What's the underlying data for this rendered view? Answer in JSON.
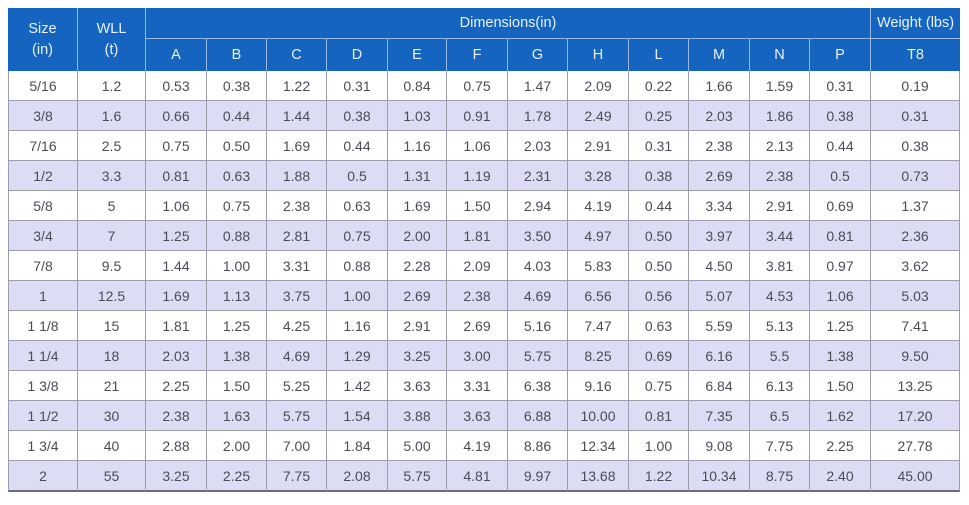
{
  "header": {
    "size": {
      "line1": "Size",
      "line2": "(in)"
    },
    "wll": {
      "line1": "WLL",
      "line2": "(t)"
    },
    "dimensions_label": "Dimensions(in)",
    "weight_label": "Weight (lbs)",
    "dim_subcolumns": [
      "A",
      "B",
      "C",
      "D",
      "E",
      "F",
      "G",
      "H",
      "L",
      "M",
      "N",
      "P"
    ],
    "weight_subcolumn": "T8"
  },
  "colors": {
    "header_bg": "#1565c0",
    "header_text": "#e9f1fd",
    "row_alt_bg": "#dcdcf4",
    "row_bg": "#ffffff",
    "body_text": "#4c4c55",
    "grid_line": "#9d9dae"
  },
  "chart_data": {
    "type": "table",
    "title": "",
    "column_groups": [
      {
        "label": "Size (in)",
        "span": 1
      },
      {
        "label": "WLL (t)",
        "span": 1
      },
      {
        "label": "Dimensions(in)",
        "span": 12
      },
      {
        "label": "Weight (lbs)",
        "span": 1
      }
    ],
    "columns": [
      "Size (in)",
      "WLL (t)",
      "A",
      "B",
      "C",
      "D",
      "E",
      "F",
      "G",
      "H",
      "L",
      "M",
      "N",
      "P",
      "T8"
    ],
    "rows": [
      [
        "5/16",
        "1.2",
        "0.53",
        "0.38",
        "1.22",
        "0.31",
        "0.84",
        "0.75",
        "1.47",
        "2.09",
        "0.22",
        "1.66",
        "1.59",
        "0.31",
        "0.19"
      ],
      [
        "3/8",
        "1.6",
        "0.66",
        "0.44",
        "1.44",
        "0.38",
        "1.03",
        "0.91",
        "1.78",
        "2.49",
        "0.25",
        "2.03",
        "1.86",
        "0.38",
        "0.31"
      ],
      [
        "7/16",
        "2.5",
        "0.75",
        "0.50",
        "1.69",
        "0.44",
        "1.16",
        "1.06",
        "2.03",
        "2.91",
        "0.31",
        "2.38",
        "2.13",
        "0.44",
        "0.38"
      ],
      [
        "1/2",
        "3.3",
        "0.81",
        "0.63",
        "1.88",
        "0.5",
        "1.31",
        "1.19",
        "2.31",
        "3.28",
        "0.38",
        "2.69",
        "2.38",
        "0.5",
        "0.73"
      ],
      [
        "5/8",
        "5",
        "1.06",
        "0.75",
        "2.38",
        "0.63",
        "1.69",
        "1.50",
        "2.94",
        "4.19",
        "0.44",
        "3.34",
        "2.91",
        "0.69",
        "1.37"
      ],
      [
        "3/4",
        "7",
        "1.25",
        "0.88",
        "2.81",
        "0.75",
        "2.00",
        "1.81",
        "3.50",
        "4.97",
        "0.50",
        "3.97",
        "3.44",
        "0.81",
        "2.36"
      ],
      [
        "7/8",
        "9.5",
        "1.44",
        "1.00",
        "3.31",
        "0.88",
        "2.28",
        "2.09",
        "4.03",
        "5.83",
        "0.50",
        "4.50",
        "3.81",
        "0.97",
        "3.62"
      ],
      [
        "1",
        "12.5",
        "1.69",
        "1.13",
        "3.75",
        "1.00",
        "2.69",
        "2.38",
        "4.69",
        "6.56",
        "0.56",
        "5.07",
        "4.53",
        "1.06",
        "5.03"
      ],
      [
        "1 1/8",
        "15",
        "1.81",
        "1.25",
        "4.25",
        "1.16",
        "2.91",
        "2.69",
        "5.16",
        "7.47",
        "0.63",
        "5.59",
        "5.13",
        "1.25",
        "7.41"
      ],
      [
        "1 1/4",
        "18",
        "2.03",
        "1.38",
        "4.69",
        "1.29",
        "3.25",
        "3.00",
        "5.75",
        "8.25",
        "0.69",
        "6.16",
        "5.5",
        "1.38",
        "9.50"
      ],
      [
        "1 3/8",
        "21",
        "2.25",
        "1.50",
        "5.25",
        "1.42",
        "3.63",
        "3.31",
        "6.38",
        "9.16",
        "0.75",
        "6.84",
        "6.13",
        "1.50",
        "13.25"
      ],
      [
        "1 1/2",
        "30",
        "2.38",
        "1.63",
        "5.75",
        "1.54",
        "3.88",
        "3.63",
        "6.88",
        "10.00",
        "0.81",
        "7.35",
        "6.5",
        "1.62",
        "17.20"
      ],
      [
        "1 3/4",
        "40",
        "2.88",
        "2.00",
        "7.00",
        "1.84",
        "5.00",
        "4.19",
        "8.86",
        "12.34",
        "1.00",
        "9.08",
        "7.75",
        "2.25",
        "27.78"
      ],
      [
        "2",
        "55",
        "3.25",
        "2.25",
        "7.75",
        "2.08",
        "5.75",
        "4.81",
        "9.97",
        "13.68",
        "1.22",
        "10.34",
        "8.75",
        "2.40",
        "45.00"
      ]
    ]
  }
}
